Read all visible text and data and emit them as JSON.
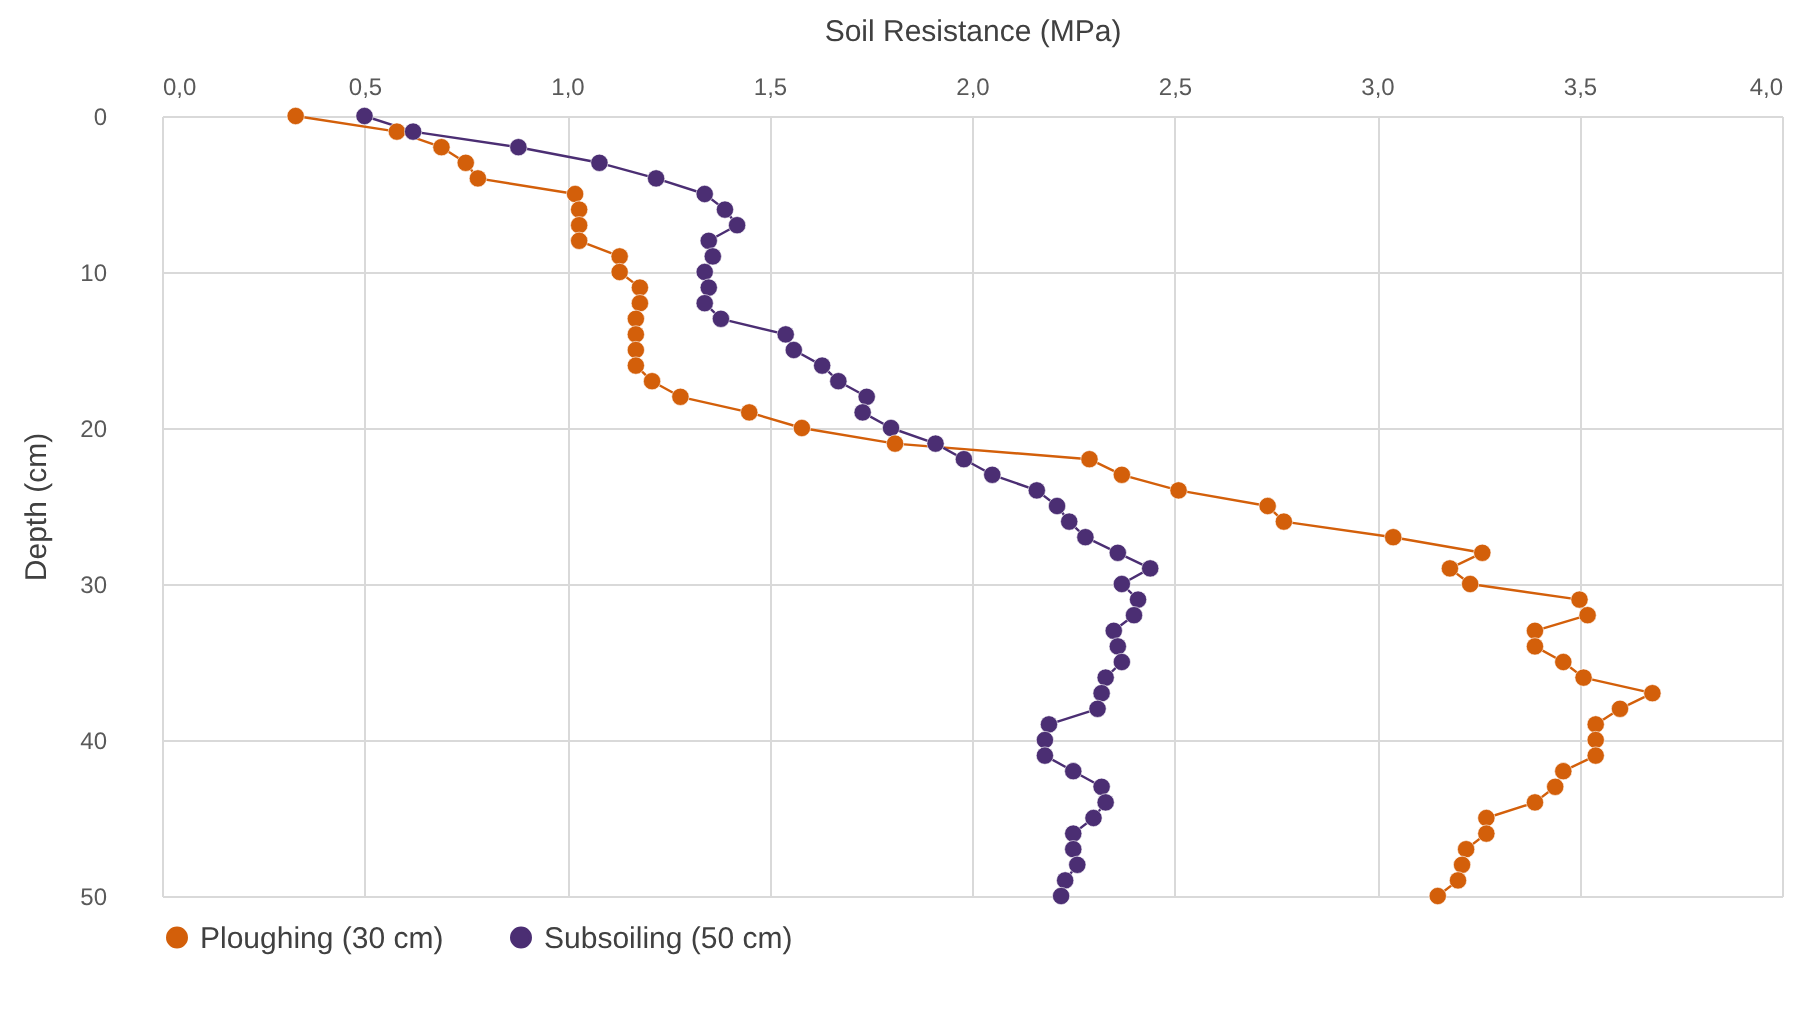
{
  "chart_data": {
    "type": "line",
    "xlabel": "Soil Resistance (MPa)",
    "ylabel": "Depth (cm)",
    "xlim": [
      0,
      4
    ],
    "xticks": [
      {
        "value": 0,
        "label": "0,0"
      },
      {
        "value": 0.5,
        "label": "0,5"
      },
      {
        "value": 1,
        "label": "1,0"
      },
      {
        "value": 1.5,
        "label": "1,5"
      },
      {
        "value": 2,
        "label": "2,0"
      },
      {
        "value": 2.5,
        "label": "2,5"
      },
      {
        "value": 3,
        "label": "3,0"
      },
      {
        "value": 3.5,
        "label": "3,5"
      },
      {
        "value": 4,
        "label": "4,0"
      }
    ],
    "ylim": [
      50,
      0
    ],
    "yticks": [
      0,
      10,
      20,
      30,
      40,
      50
    ],
    "grid": true,
    "legend": "bottom",
    "marker": "circle",
    "series": [
      {
        "name": "Ploughing (30 cm)",
        "color": "#d35f0a",
        "x": [
          0.33,
          0.58,
          0.69,
          0.75,
          0.78,
          1.02,
          1.03,
          1.03,
          1.03,
          1.13,
          1.13,
          1.18,
          1.18,
          1.17,
          1.17,
          1.17,
          1.17,
          1.21,
          1.28,
          1.45,
          1.58,
          1.81,
          2.29,
          2.37,
          2.51,
          2.73,
          2.77,
          3.04,
          3.26,
          3.18,
          3.23,
          3.5,
          3.52,
          3.39,
          3.39,
          3.46,
          3.51,
          3.68,
          3.6,
          3.54,
          3.54,
          3.54,
          3.46,
          3.44,
          3.39,
          3.27,
          3.27,
          3.22,
          3.21,
          3.2,
          3.15
        ],
        "values": [
          0,
          1,
          2,
          3,
          4,
          5,
          6,
          7,
          8,
          9,
          10,
          11,
          12,
          13,
          14,
          15,
          16,
          17,
          18,
          19,
          20,
          21,
          22,
          23,
          24,
          25,
          26,
          27,
          28,
          29,
          30,
          31,
          32,
          33,
          34,
          35,
          36,
          37,
          38,
          39,
          40,
          41,
          42,
          43,
          44,
          45,
          46,
          47,
          48,
          49,
          50
        ]
      },
      {
        "name": "Subsoiling (50 cm)",
        "color": "#4b2e73",
        "x": [
          0.5,
          0.62,
          0.88,
          1.08,
          1.22,
          1.34,
          1.39,
          1.42,
          1.35,
          1.36,
          1.34,
          1.35,
          1.34,
          1.38,
          1.54,
          1.56,
          1.63,
          1.67,
          1.74,
          1.73,
          1.8,
          1.91,
          1.98,
          2.05,
          2.16,
          2.21,
          2.24,
          2.28,
          2.36,
          2.44,
          2.37,
          2.41,
          2.4,
          2.35,
          2.36,
          2.37,
          2.33,
          2.32,
          2.31,
          2.19,
          2.18,
          2.18,
          2.25,
          2.32,
          2.33,
          2.3,
          2.25,
          2.25,
          2.26,
          2.23,
          2.22
        ],
        "values": [
          0,
          1,
          2,
          3,
          4,
          5,
          6,
          7,
          8,
          9,
          10,
          11,
          12,
          13,
          14,
          15,
          16,
          17,
          18,
          19,
          20,
          21,
          22,
          23,
          24,
          25,
          26,
          27,
          28,
          29,
          30,
          31,
          32,
          33,
          34,
          35,
          36,
          37,
          38,
          39,
          40,
          41,
          42,
          43,
          44,
          45,
          46,
          47,
          48,
          49,
          50
        ]
      }
    ]
  }
}
